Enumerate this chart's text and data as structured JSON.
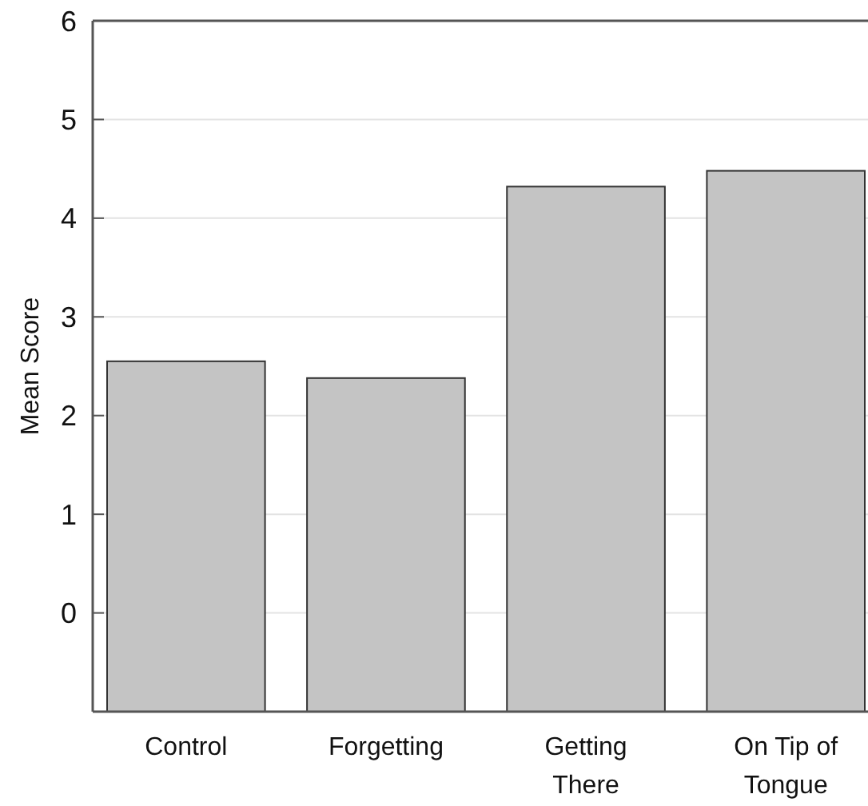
{
  "chart_data": {
    "type": "bar",
    "ylabel": "Mean Score",
    "categories": [
      "Control",
      "Forgetting",
      "Getting There",
      "On Tip of Tongue"
    ],
    "values": [
      3.55,
      3.38,
      5.32,
      5.48
    ],
    "base": [
      -1,
      -1,
      -1,
      -1
    ],
    "color": "#c4c4c4",
    "ylim": [
      -1,
      6
    ],
    "yticks": [
      {
        "value": -1,
        "label": null
      },
      0,
      1,
      2,
      3,
      4,
      5,
      6
    ],
    "grid": "y"
  }
}
